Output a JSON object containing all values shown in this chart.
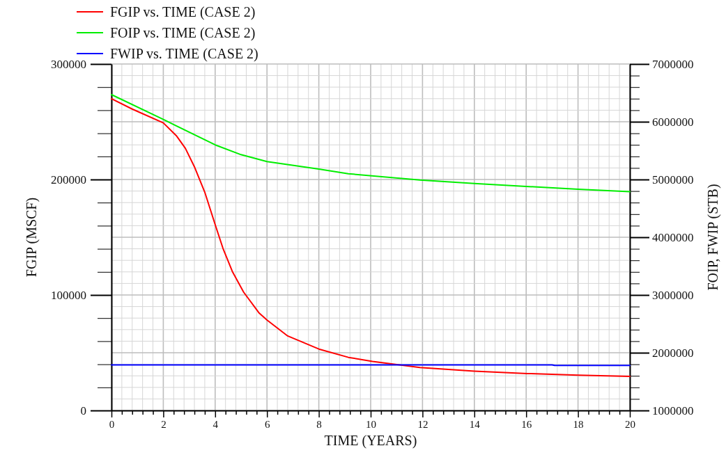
{
  "chart_data": {
    "type": "line",
    "xlabel": "TIME (YEARS)",
    "ylabel": "FGIP (MSCF)",
    "y2label": "FOIP, FWIP (STB)",
    "xlim": [
      0,
      20
    ],
    "xticks": [
      0,
      {
        "value": 0.4,
        "label": null
      },
      {
        "value": 0.8,
        "label": null
      },
      {
        "value": 1.2,
        "label": null
      },
      {
        "value": 1.6,
        "label": null
      },
      2,
      {
        "value": 2.4,
        "label": null
      },
      {
        "value": 2.8,
        "label": null
      },
      {
        "value": 3.2,
        "label": null
      },
      {
        "value": 3.6,
        "label": null
      },
      4,
      {
        "value": 4.4,
        "label": null
      },
      {
        "value": 4.8,
        "label": null
      },
      {
        "value": 5.2,
        "label": null
      },
      {
        "value": 5.6,
        "label": null
      },
      6,
      {
        "value": 6.4,
        "label": null
      },
      {
        "value": 6.8,
        "label": null
      },
      {
        "value": 7.2,
        "label": null
      },
      {
        "value": 7.6,
        "label": null
      },
      8,
      {
        "value": 8.4,
        "label": null
      },
      {
        "value": 8.8,
        "label": null
      },
      {
        "value": 9.2,
        "label": null
      },
      {
        "value": 9.6,
        "label": null
      },
      10,
      {
        "value": 10.4,
        "label": null
      },
      {
        "value": 10.8,
        "label": null
      },
      {
        "value": 11.2,
        "label": null
      },
      {
        "value": 11.6,
        "label": null
      },
      12,
      {
        "value": 12.4,
        "label": null
      },
      {
        "value": 12.8,
        "label": null
      },
      {
        "value": 13.2,
        "label": null
      },
      {
        "value": 13.6,
        "label": null
      },
      14,
      {
        "value": 14.4,
        "label": null
      },
      {
        "value": 14.8,
        "label": null
      },
      {
        "value": 15.2,
        "label": null
      },
      {
        "value": 15.6,
        "label": null
      },
      16,
      {
        "value": 16.4,
        "label": null
      },
      {
        "value": 16.8,
        "label": null
      },
      {
        "value": 17.2,
        "label": null
      },
      {
        "value": 17.6,
        "label": null
      },
      18,
      {
        "value": 18.4,
        "label": null
      },
      {
        "value": 18.8,
        "label": null
      },
      {
        "value": 19.2,
        "label": null
      },
      {
        "value": 19.6,
        "label": null
      },
      20
    ],
    "ylim": [
      0,
      300000
    ],
    "yticks": [
      0,
      {
        "value": 20000,
        "label": null
      },
      {
        "value": 40000,
        "label": null
      },
      {
        "value": 60000,
        "label": null
      },
      {
        "value": 80000,
        "label": null
      },
      100000,
      {
        "value": 120000,
        "label": null
      },
      {
        "value": 140000,
        "label": null
      },
      {
        "value": 160000,
        "label": null
      },
      {
        "value": 180000,
        "label": null
      },
      200000,
      {
        "value": 220000,
        "label": null
      },
      {
        "value": 240000,
        "label": null
      },
      {
        "value": 260000,
        "label": null
      },
      {
        "value": 280000,
        "label": null
      },
      300000
    ],
    "y2lim": [
      1000000,
      7000000
    ],
    "y2ticks": [
      1000000,
      {
        "value": 1200000,
        "label": null
      },
      {
        "value": 1400000,
        "label": null
      },
      {
        "value": 1600000,
        "label": null
      },
      {
        "value": 1800000,
        "label": null
      },
      2000000,
      {
        "value": 2200000,
        "label": null
      },
      {
        "value": 2400000,
        "label": null
      },
      {
        "value": 2600000,
        "label": null
      },
      {
        "value": 2800000,
        "label": null
      },
      3000000,
      {
        "value": 3200000,
        "label": null
      },
      {
        "value": 3400000,
        "label": null
      },
      {
        "value": 3600000,
        "label": null
      },
      {
        "value": 3800000,
        "label": null
      },
      4000000,
      {
        "value": 4200000,
        "label": null
      },
      {
        "value": 4400000,
        "label": null
      },
      {
        "value": 4600000,
        "label": null
      },
      {
        "value": 4800000,
        "label": null
      },
      5000000,
      {
        "value": 5200000,
        "label": null
      },
      {
        "value": 5400000,
        "label": null
      },
      {
        "value": 5600000,
        "label": null
      },
      {
        "value": 5800000,
        "label": null
      },
      6000000,
      {
        "value": 6200000,
        "label": null
      },
      {
        "value": 6400000,
        "label": null
      },
      {
        "value": 6600000,
        "label": null
      },
      {
        "value": 6800000,
        "label": null
      },
      7000000
    ],
    "grid": true,
    "legend": "top left",
    "line_style": "solid",
    "marker": "none",
    "series": [
      {
        "name": "FGIP vs. TIME (CASE 2)",
        "color": "#ff0000",
        "x": [
          0,
          0.8,
          2,
          2.5,
          2.85,
          3.2,
          3.6,
          4,
          4.3,
          4.66,
          5.1,
          5.7,
          6,
          6.8,
          8,
          9.14,
          10.07,
          11.9,
          14,
          16.05,
          18,
          20
        ],
        "values": [
          270000,
          261000,
          249000,
          238000,
          227000,
          211000,
          189000,
          161000,
          140500,
          120500,
          102400,
          84300,
          78300,
          64500,
          53200,
          46000,
          42500,
          37200,
          34100,
          32000,
          30500,
          29500
        ]
      },
      {
        "name": "FOIP vs. TIME (CASE 2)",
        "color": "#00ee00",
        "axis": "y2",
        "x": [
          0,
          2,
          4,
          5,
          6,
          8,
          9.14,
          11.9,
          14,
          16,
          18,
          20
        ],
        "values": [
          6470000,
          6040000,
          5600000,
          5430000,
          5310000,
          5180000,
          5100000,
          4990000,
          4930000,
          4880000,
          4830000,
          4790000
        ]
      },
      {
        "name": "FWIP vs. TIME (CASE 2)",
        "color": "#0000ff",
        "axis": "y2",
        "x": [
          0,
          17,
          17.1,
          20
        ],
        "values": [
          1790000,
          1790000,
          1780000,
          1780000
        ]
      }
    ]
  }
}
